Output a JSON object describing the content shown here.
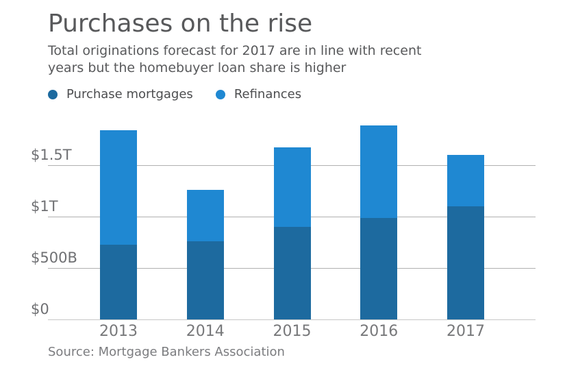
{
  "title": "Purchases on the rise",
  "subtitle": "Total originations forecast for 2017 are in line with recent years but the homebuyer loan share is higher",
  "subtitle_lines": [
    "Total originations forecast for 2017 are in line with recent",
    "years but the homebuyer loan share is higher"
  ],
  "legend": [
    {
      "label": "Purchase mortgages",
      "color": "#1d6a9f"
    },
    {
      "label": "Refinances",
      "color": "#1f88d2"
    }
  ],
  "source": "Source: Mortgage Bankers Association",
  "colors": {
    "purchase": "#1d6a9f",
    "refinance": "#1f88d2",
    "gridline": "#b0b0b0",
    "title_text": "#58595b",
    "axis_text": "#6f7073"
  },
  "chart_data": {
    "type": "bar",
    "stacked": true,
    "title": "Purchases on the rise",
    "subtitle": "Total originations forecast for 2017 are in line with recent years but the homebuyer loan share is higher",
    "categories": [
      "2013",
      "2014",
      "2015",
      "2016",
      "2017"
    ],
    "series": [
      {
        "name": "Purchase mortgages",
        "color": "#1d6a9f",
        "values_billions": [
          730,
          760,
          900,
          990,
          1100
        ]
      },
      {
        "name": "Refinances",
        "color": "#1f88d2",
        "values_billions": [
          1110,
          500,
          775,
          900,
          500
        ]
      }
    ],
    "totals_billions": [
      1840,
      1260,
      1675,
      1890,
      1600
    ],
    "y_ticks": [
      {
        "label": "$0",
        "value_billions": 0
      },
      {
        "label": "$500B",
        "value_billions": 500
      },
      {
        "label": "$1T",
        "value_billions": 1000
      },
      {
        "label": "$1.5T",
        "value_billions": 1500
      }
    ],
    "ylim_billions": [
      0,
      2000
    ],
    "xlabel": "",
    "ylabel": "",
    "grid": "horizontal",
    "legend_position": "top-left",
    "source": "Source: Mortgage Bankers Association"
  }
}
